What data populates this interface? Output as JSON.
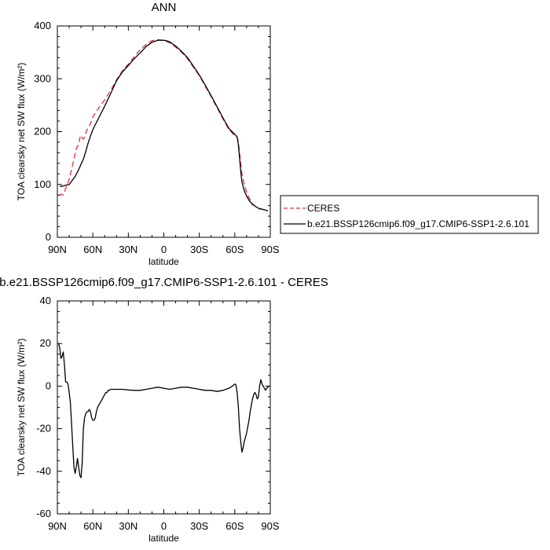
{
  "chart_data": [
    {
      "type": "line",
      "title": "ANN",
      "xlabel": "latitude",
      "ylabel": "TOA clearsky net SW flux (W/m²)",
      "xlim": [
        90,
        -90
      ],
      "ylim": [
        0,
        400
      ],
      "x_ticks": [
        "90N",
        "60N",
        "30N",
        "0",
        "30S",
        "60S",
        "90S"
      ],
      "y_ticks": [
        "0",
        "100",
        "200",
        "300",
        "400"
      ],
      "legend_position": "right",
      "series": [
        {
          "name": "CERES",
          "color": "#e8303a",
          "dash": true,
          "x": [
            88,
            87,
            85,
            83,
            80,
            78,
            76,
            74,
            73,
            72,
            71,
            70,
            69,
            68,
            67,
            66,
            65,
            62,
            60,
            55,
            50,
            45,
            40,
            35,
            30,
            25,
            20,
            15,
            10,
            5,
            2,
            0,
            -2,
            -5,
            -10,
            -15,
            -20,
            -25,
            -30,
            -35,
            -40,
            -45,
            -50,
            -55,
            -60,
            -62,
            -63,
            -64,
            -65,
            -66,
            -68,
            -70,
            -72,
            -75,
            -80,
            -85,
            -88
          ],
          "values": [
            78,
            82,
            80,
            92,
            110,
            128,
            148,
            168,
            172,
            175,
            188,
            193,
            188,
            186,
            189,
            197,
            203,
            215,
            228,
            245,
            260,
            278,
            298,
            315,
            328,
            342,
            355,
            365,
            372,
            374,
            373,
            372,
            371,
            368,
            360,
            350,
            338,
            322,
            306,
            286,
            266,
            245,
            224,
            204,
            192,
            190,
            180,
            160,
            140,
            120,
            100,
            85,
            75,
            63,
            54,
            52,
            50
          ]
        },
        {
          "name": "b.e21.BSSP126cmip6.f09_g17.CMIP6-SSP1-2.6.101",
          "color": "#000000",
          "dash": false,
          "x": [
            88,
            85,
            82,
            80,
            78,
            75,
            72,
            70,
            68,
            66,
            64,
            62,
            60,
            55,
            50,
            45,
            40,
            35,
            30,
            25,
            20,
            15,
            10,
            5,
            2,
            0,
            -2,
            -5,
            -10,
            -15,
            -20,
            -25,
            -30,
            -35,
            -40,
            -45,
            -50,
            -55,
            -60,
            -62,
            -63,
            -64,
            -65,
            -66,
            -68,
            -70,
            -72,
            -75,
            -80,
            -85,
            -88
          ],
          "values": [
            96,
            97,
            99,
            100,
            106,
            115,
            128,
            138,
            148,
            162,
            178,
            192,
            204,
            226,
            248,
            272,
            296,
            313,
            325,
            338,
            349,
            361,
            369,
            373,
            373,
            373,
            372,
            370,
            362,
            352,
            340,
            324,
            307,
            288,
            268,
            247,
            226,
            206,
            195,
            190,
            175,
            150,
            125,
            105,
            88,
            78,
            70,
            62,
            55,
            52,
            50
          ]
        }
      ]
    },
    {
      "type": "line",
      "title": "b.e21.BSSP126cmip6.f09_g17.CMIP6-SSP1-2.6.101 - CERES",
      "xlabel": "latitude",
      "ylabel": "TOA clearsky net SW flux (W/m²)",
      "xlim": [
        90,
        -90
      ],
      "ylim": [
        -60,
        40
      ],
      "x_ticks": [
        "90N",
        "60N",
        "30N",
        "0",
        "30S",
        "60S",
        "90S"
      ],
      "y_ticks": [
        "-60",
        "-40",
        "-20",
        "0",
        "20",
        "40"
      ],
      "series": [
        {
          "color": "#000000",
          "x": [
            89,
            88,
            87,
            86,
            85,
            84,
            83,
            82,
            81,
            80,
            79,
            78,
            77,
            76,
            75,
            74,
            73,
            72,
            71,
            70,
            69,
            68,
            67,
            66,
            65,
            64,
            63,
            62,
            61,
            60,
            59,
            58,
            57,
            56,
            55,
            54,
            53,
            52,
            51,
            50,
            49,
            48,
            47,
            46,
            45,
            44,
            43,
            42,
            41,
            40,
            35,
            30,
            25,
            20,
            15,
            10,
            5,
            0,
            -5,
            -10,
            -15,
            -20,
            -25,
            -30,
            -35,
            -40,
            -45,
            -50,
            -55,
            -58,
            -60,
            -61,
            -62,
            -63,
            -64,
            -65,
            -66,
            -67,
            -68,
            -69,
            -70,
            -71,
            -72,
            -73,
            -74,
            -75,
            -76,
            -77,
            -78,
            -79,
            -80,
            -81,
            -82,
            -83,
            -84,
            -85,
            -86,
            -87,
            -88,
            -89
          ],
          "values": [
            20,
            18,
            13,
            14,
            16,
            10,
            2,
            2,
            1,
            -3,
            -8,
            -18,
            -28,
            -38,
            -41,
            -38,
            -34,
            -38,
            -42,
            -43,
            -36,
            -20,
            -15,
            -13,
            -12,
            -12,
            -11,
            -12,
            -15,
            -16,
            -16,
            -15,
            -12,
            -10,
            -9,
            -8,
            -7,
            -6,
            -5,
            -4,
            -3,
            -3,
            -2,
            -2,
            -1.5,
            -1.5,
            -1.5,
            -1.5,
            -1.5,
            -1.5,
            -1.5,
            -1.8,
            -2,
            -2,
            -1.5,
            -1,
            -0.5,
            -1,
            -1.5,
            -1,
            -0.5,
            -0.5,
            -1,
            -1.5,
            -2,
            -2,
            -2.5,
            -2,
            -1,
            0,
            1,
            0.5,
            -3,
            -10,
            -20,
            -26,
            -31,
            -29,
            -26,
            -24,
            -22,
            -19,
            -16,
            -12,
            -9,
            -6,
            -4,
            -3,
            -4,
            -6,
            -5,
            0,
            3,
            1,
            0,
            -1,
            -2,
            -1,
            -0.5,
            0
          ]
        }
      ]
    }
  ]
}
